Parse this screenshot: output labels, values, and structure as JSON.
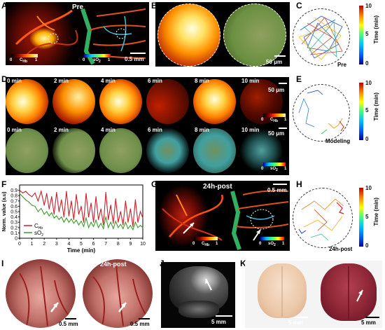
{
  "panels": {
    "A": {
      "label": "A",
      "title": "Pre",
      "cb1": {
        "min": "0",
        "name": "C",
        "sub": "Hb",
        "max": "1"
      },
      "cb2": {
        "min": "0",
        "name": "sO",
        "sub": "2",
        "max": "1"
      },
      "scale": "0.5 mm"
    },
    "B": {
      "label": "B",
      "scale": "50 μm"
    },
    "C": {
      "label": "C",
      "caption": "Pre",
      "cbar_title": "Time (min)",
      "cbar_max": "10",
      "cbar_mid": "5",
      "cbar_min": "0"
    },
    "D": {
      "label": "D",
      "times_top": [
        "0 min",
        "2 min",
        "4 min",
        "6 min",
        "8 min",
        "10 min"
      ],
      "times_bottom": [
        "0 min",
        "2 min",
        "4 min",
        "6 min",
        "8 min",
        "10 min"
      ],
      "scale_top": "50 μm",
      "scale_bottom": "50 μm",
      "cb1": {
        "min": "0",
        "name": "C",
        "sub": "Hb",
        "max": "1"
      },
      "cb2": {
        "min": "0",
        "name": "sO",
        "sub": "2",
        "max": "1"
      }
    },
    "E": {
      "label": "E",
      "caption": "Modeling",
      "cbar_title": "Time (min)",
      "cbar_max": "10",
      "cbar_mid": "5",
      "cbar_min": "0"
    },
    "F": {
      "label": "F"
    },
    "G": {
      "label": "G",
      "title": "24h-post",
      "scale": "0.5 mm",
      "cb1": {
        "min": "0",
        "name": "C",
        "sub": "Hb",
        "max": "1"
      },
      "cb2": {
        "min": "0",
        "name": "sO",
        "sub": "2",
        "max": "1"
      }
    },
    "H": {
      "label": "H",
      "caption": "24h-post",
      "cbar_title": "Time (min)",
      "cbar_max": "10",
      "cbar_mid": "5",
      "cbar_min": "0"
    },
    "I": {
      "label": "I",
      "left_title": "Pre",
      "right_title": "24h-post",
      "scale_left": "0.5 mm",
      "scale_right": "0.5 mm"
    },
    "J": {
      "label": "J",
      "scale": "5 mm"
    },
    "K": {
      "label": "K",
      "scale_left": "5 mm",
      "scale_right": "5 mm"
    }
  },
  "chart_data": {
    "type": "line",
    "xlabel": "Time (min)",
    "ylabel": "Norm. value (a.u)",
    "xlim": [
      0,
      10
    ],
    "ylim": [
      0,
      1.0
    ],
    "xticks": [
      "0",
      "1",
      "2",
      "3",
      "4",
      "5",
      "6",
      "7",
      "8",
      "9",
      "10"
    ],
    "yticks": [
      "0",
      "0.1",
      "0.2",
      "0.3",
      "0.4",
      "0.5",
      "0.6",
      "0.7",
      "0.8",
      "0.9"
    ],
    "legend_position": "bottom-left",
    "series": [
      {
        "name": "C",
        "name_sub": "Hb",
        "color": "#c8202a",
        "x": [
          0,
          0.25,
          0.5,
          0.75,
          1,
          1.25,
          1.5,
          1.75,
          2,
          2.2,
          2.4,
          2.6,
          2.8,
          3,
          3.2,
          3.4,
          3.6,
          3.8,
          4,
          4.2,
          4.4,
          4.6,
          4.8,
          5,
          5.2,
          5.4,
          5.6,
          5.8,
          6,
          6.2,
          6.4,
          6.6,
          6.8,
          7,
          7.2,
          7.4,
          7.6,
          7.8,
          8,
          8.2,
          8.4,
          8.6,
          8.8,
          9,
          9.2,
          9.4,
          9.6,
          9.8,
          10
        ],
        "y": [
          0.9,
          0.85,
          0.88,
          0.82,
          0.78,
          0.85,
          0.7,
          0.88,
          0.62,
          0.84,
          0.55,
          0.78,
          0.45,
          0.86,
          0.5,
          0.72,
          0.4,
          0.88,
          0.42,
          0.7,
          0.35,
          0.82,
          0.45,
          0.6,
          0.3,
          0.84,
          0.4,
          0.66,
          0.3,
          0.78,
          0.35,
          0.55,
          0.25,
          0.86,
          0.35,
          0.62,
          0.28,
          0.74,
          0.3,
          0.5,
          0.25,
          0.7,
          0.3,
          0.55,
          0.22,
          0.72,
          0.3,
          0.5,
          0.38
        ]
      },
      {
        "name": "sO",
        "name_sub": "2",
        "color": "#3c9a2a",
        "x": [
          0,
          0.25,
          0.5,
          0.75,
          1,
          1.25,
          1.5,
          1.75,
          2,
          2.2,
          2.4,
          2.6,
          2.8,
          3,
          3.2,
          3.4,
          3.6,
          3.8,
          4,
          4.2,
          4.4,
          4.6,
          4.8,
          5,
          5.2,
          5.4,
          5.6,
          5.8,
          6,
          6.2,
          6.4,
          6.6,
          6.8,
          7,
          7.2,
          7.4,
          7.6,
          7.8,
          8,
          8.2,
          8.4,
          8.6,
          8.8,
          9,
          9.2,
          9.4,
          9.6,
          9.8,
          10
        ],
        "y": [
          0.84,
          0.78,
          0.72,
          0.68,
          0.62,
          0.6,
          0.5,
          0.56,
          0.45,
          0.5,
          0.42,
          0.48,
          0.38,
          0.42,
          0.35,
          0.4,
          0.3,
          0.38,
          0.3,
          0.36,
          0.28,
          0.34,
          0.25,
          0.32,
          0.22,
          0.38,
          0.2,
          0.3,
          0.22,
          0.34,
          0.2,
          0.28,
          0.18,
          0.4,
          0.2,
          0.3,
          0.18,
          0.32,
          0.2,
          0.26,
          0.18,
          0.3,
          0.18,
          0.24,
          0.16,
          0.3,
          0.2,
          0.24,
          0.2
        ]
      }
    ]
  }
}
